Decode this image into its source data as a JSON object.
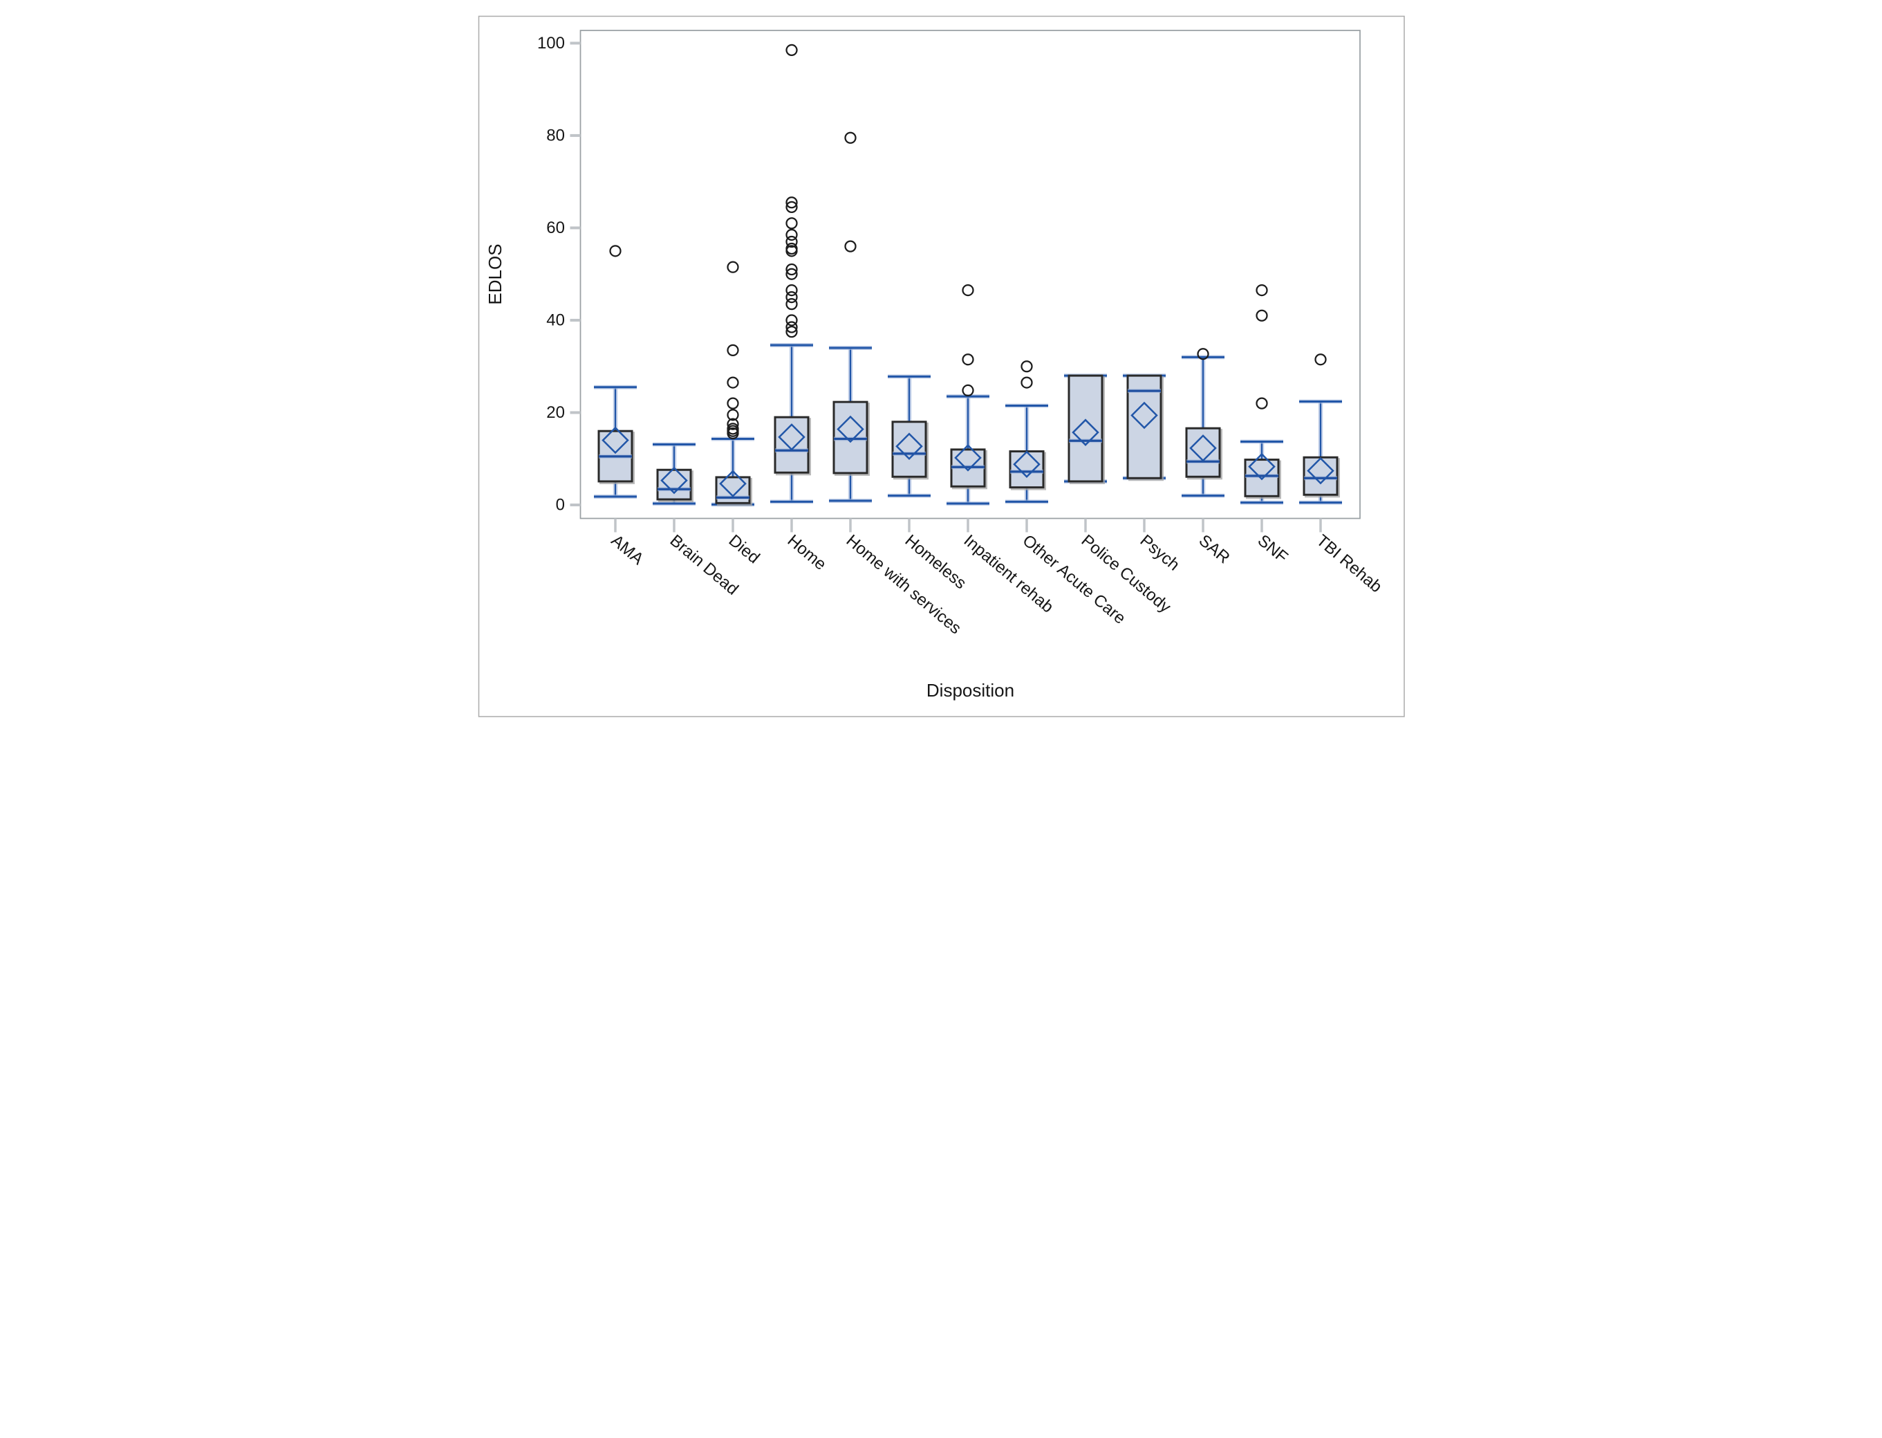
{
  "figure": {
    "kind": "SAS-style box plot output",
    "background": "#ffffff"
  },
  "chart_data": {
    "type": "boxplot",
    "title": "",
    "xlabel": "Disposition",
    "ylabel": "EDLOS",
    "ylim": [
      0,
      100
    ],
    "yticks": [
      0,
      20,
      40,
      60,
      80,
      100
    ],
    "grid": false,
    "legend": null,
    "marker_semantics": {
      "diamond": "mean",
      "circle": "outlier",
      "horizontal-line-in-box": "median"
    },
    "categories": [
      "AMA",
      "Brain Dead",
      "Died",
      "Home",
      "Home with services",
      "Homeless",
      "Inpatient rehab",
      "Other Acute Care",
      "Police Custody",
      "Psych",
      "SAR",
      "SNF",
      "TBI Rehab"
    ],
    "series": [
      {
        "category": "AMA",
        "whisker_low": 1.8,
        "q1": 5.1,
        "median": 10.5,
        "q3": 16.0,
        "whisker_high": 25.5,
        "mean": 14.0,
        "outliers": [
          55
        ]
      },
      {
        "category": "Brain Dead",
        "whisker_low": 0.3,
        "q1": 1.2,
        "median": 3.4,
        "q3": 7.6,
        "whisker_high": 13.1,
        "mean": 5.3,
        "outliers": []
      },
      {
        "category": "Died",
        "whisker_low": 0.1,
        "q1": 0.4,
        "median": 1.6,
        "q3": 6.0,
        "whisker_high": 14.3,
        "mean": 4.6,
        "outliers": [
          51.5,
          33.5,
          26.5,
          22,
          19.5,
          17.5,
          16.5,
          16,
          15.5
        ]
      },
      {
        "category": "Home",
        "whisker_low": 0.7,
        "q1": 7.0,
        "median": 11.8,
        "q3": 19.0,
        "whisker_high": 34.6,
        "mean": 14.7,
        "outliers": [
          98.5,
          65.5,
          64.5,
          61,
          58.5,
          57,
          55.5,
          55,
          51,
          50,
          46.5,
          45,
          43.5,
          40,
          38.5,
          37.5
        ]
      },
      {
        "category": "Home with services",
        "whisker_low": 0.9,
        "q1": 6.9,
        "median": 14.3,
        "q3": 22.3,
        "whisker_high": 34.0,
        "mean": 16.4,
        "outliers": [
          79.5,
          56
        ]
      },
      {
        "category": "Homeless",
        "whisker_low": 2.0,
        "q1": 6.1,
        "median": 11.1,
        "q3": 18.0,
        "whisker_high": 27.8,
        "mean": 12.7,
        "outliers": []
      },
      {
        "category": "Inpatient rehab",
        "whisker_low": 0.3,
        "q1": 4.0,
        "median": 8.2,
        "q3": 12.0,
        "whisker_high": 23.5,
        "mean": 10.2,
        "outliers": [
          46.5,
          31.5,
          24.8
        ]
      },
      {
        "category": "Other Acute Care",
        "whisker_low": 0.7,
        "q1": 3.8,
        "median": 7.2,
        "q3": 11.6,
        "whisker_high": 21.5,
        "mean": 8.8,
        "outliers": [
          30,
          26.5
        ]
      },
      {
        "category": "Police Custody",
        "whisker_low": 5.1,
        "q1": 5.1,
        "median": 13.9,
        "q3": 28.0,
        "whisker_high": 28.0,
        "mean": 15.7,
        "outliers": []
      },
      {
        "category": "Psych",
        "whisker_low": 5.8,
        "q1": 5.8,
        "median": 24.7,
        "q3": 28.0,
        "whisker_high": 28.0,
        "mean": 19.4,
        "outliers": []
      },
      {
        "category": "SAR",
        "whisker_low": 2.0,
        "q1": 6.1,
        "median": 9.4,
        "q3": 16.6,
        "whisker_high": 32.0,
        "mean": 12.3,
        "outliers": [
          32.7
        ]
      },
      {
        "category": "SNF",
        "whisker_low": 0.5,
        "q1": 1.9,
        "median": 6.3,
        "q3": 9.8,
        "whisker_high": 13.7,
        "mean": 8.3,
        "outliers": [
          46.5,
          41,
          22
        ]
      },
      {
        "category": "TBI Rehab",
        "whisker_low": 0.5,
        "q1": 2.2,
        "median": 5.8,
        "q3": 10.3,
        "whisker_high": 22.4,
        "mean": 7.4,
        "outliers": [
          31.5
        ]
      }
    ],
    "style": {
      "box_fill": "#ccd5e4",
      "box_border": "#2b2b2b",
      "box_shadow": "#a3a3a3",
      "whisker_color": "#2156a8",
      "whisker_halo": "#a4b8dc",
      "median_color": "#1f4fa0",
      "mean_marker_color": "#2156a8",
      "outlier_color": "#1c1c1c",
      "axis_border_color": "#9aa0a4",
      "tick_color": "#c0c4c8",
      "text_color": "#161616",
      "outer_border_color": "#ababab",
      "background": "#ffffff"
    }
  }
}
